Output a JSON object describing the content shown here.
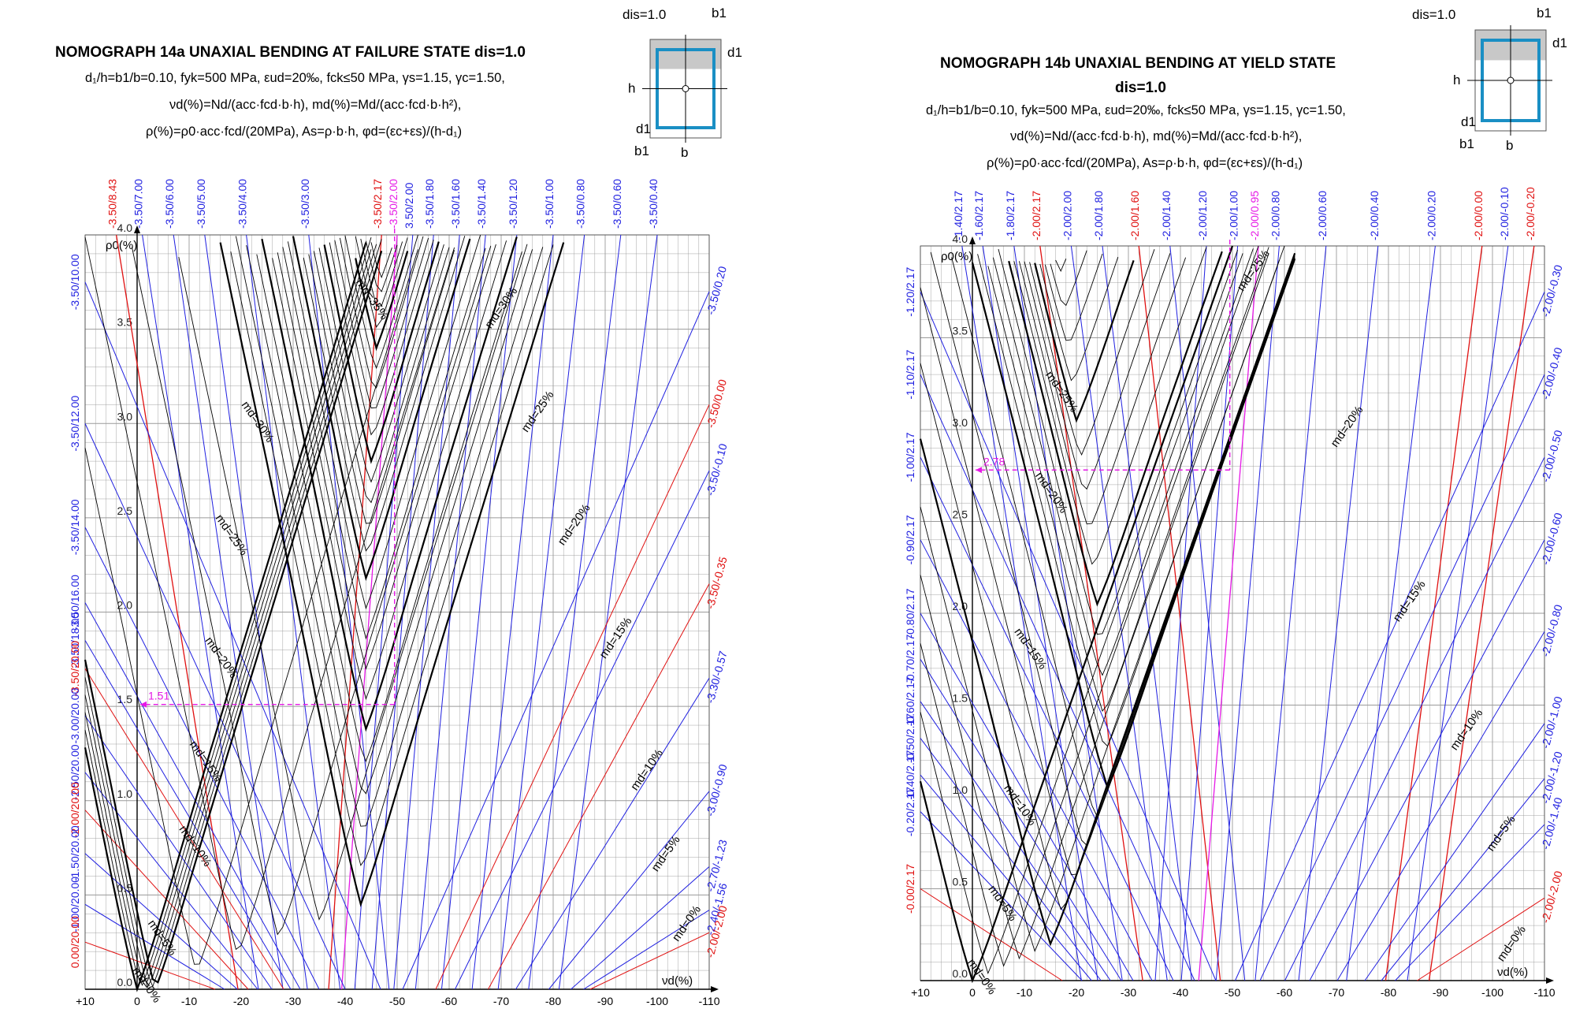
{
  "colors": {
    "blue": "#1f1fe0",
    "red": "#e01010",
    "magenta": "#e619e6",
    "section_blue": "#1a8fc4",
    "grid": "#9a9a9a",
    "curve": "#000000",
    "shade": "#c8c8c8"
  },
  "chart_data": [
    {
      "type": "line",
      "title": "NOMOGRAPH 14a UNAXIAL BENDING AT FAILURE STATE dis=1.0",
      "subtitle_lines": [
        "d₁/h=b1/b=0.10, fyk=500 MPa, εud=20‰, fck≤50 MPa, γs=1.15, γc=1.50,",
        "νd(%)=Nd/(acc·fcd·b·h), md(%)=Md/(acc·fcd·b·h²),",
        "ρ(%)=ρ0·acc·fcd/(20MPa), As=ρ·b·h, φd=(εc+εs)/(h-d₁)"
      ],
      "xlabel": "νd(%)",
      "ylabel": "ρ0(%)",
      "xlim": [
        10,
        -110
      ],
      "ylim": [
        0,
        4.0
      ],
      "x_ticks": [
        "+10",
        "0",
        "-10",
        "-20",
        "-30",
        "-40",
        "-50",
        "-60",
        "-70",
        "-80",
        "-90",
        "-100",
        "-110"
      ],
      "y_ticks": [
        "0.0",
        "0.5",
        "1.0",
        "1.5",
        "2.0",
        "2.5",
        "3.0",
        "3.5",
        "4.0"
      ],
      "section_labels": {
        "dis": "dis=1.0",
        "b1": "b1",
        "d1": "d1",
        "h": "h",
        "b": "b"
      },
      "curves": [
        {
          "label": "md=0%",
          "m": 0,
          "vertex": [
            0.0,
            0.0
          ],
          "slopes": [
            0.13,
            0.09
          ]
        },
        {
          "label": "md=5%",
          "m": 5,
          "vertex": [
            -3.5,
            0.0
          ],
          "slopes": [
            0.13,
            0.09
          ]
        },
        {
          "label": "md=10%",
          "m": 10,
          "vertex": [
            -43,
            0.45
          ],
          "slopes": [
            0.13,
            0.09
          ]
        },
        {
          "label": "md=15%",
          "m": 15,
          "vertex": [
            -44,
            1.38
          ],
          "slopes": [
            0.13,
            0.09
          ]
        },
        {
          "label": "md=20%",
          "m": 20,
          "vertex": [
            -44,
            2.18
          ],
          "slopes": [
            0.13,
            0.09
          ]
        },
        {
          "label": "md=25%",
          "m": 25,
          "vertex": [
            -45,
            2.8
          ],
          "slopes": [
            0.13,
            0.09
          ]
        },
        {
          "label": "md=30%",
          "m": 30,
          "vertex": [
            -46,
            3.4
          ],
          "slopes": [
            0.13,
            0.09
          ]
        },
        {
          "label": "md=35%",
          "m": 35,
          "vertex": [
            -47,
            3.85
          ],
          "slopes": [
            0.13,
            0.09
          ]
        }
      ],
      "curve_labels": [
        {
          "text": "md=0%",
          "at": [
            1,
            0.1
          ]
        },
        {
          "text": "md=5%",
          "at": [
            -2,
            0.35
          ]
        },
        {
          "text": "md=10%",
          "at": [
            -8,
            0.85
          ]
        },
        {
          "text": "md=15%",
          "at": [
            -10,
            1.3
          ]
        },
        {
          "text": "md=20%",
          "at": [
            -13,
            1.85
          ]
        },
        {
          "text": "md=25%",
          "at": [
            -15,
            2.5
          ]
        },
        {
          "text": "md=30%",
          "at": [
            -20,
            3.1
          ]
        },
        {
          "text": "md=35%",
          "at": [
            -42,
            3.75
          ]
        },
        {
          "text": "md=30%",
          "at": [
            -68,
            3.5
          ]
        },
        {
          "text": "md=25%",
          "at": [
            -75,
            2.95
          ]
        },
        {
          "text": "md=20%",
          "at": [
            -82,
            2.35
          ]
        },
        {
          "text": "md=15%",
          "at": [
            -90,
            1.75
          ]
        },
        {
          "text": "md=10%",
          "at": [
            -96,
            1.05
          ]
        },
        {
          "text": "md=5%",
          "at": [
            -100,
            0.62
          ]
        },
        {
          "text": "md=0%",
          "at": [
            -104,
            0.25
          ]
        }
      ],
      "top_strain_labels": [
        {
          "text": "-3.50/8.43",
          "x": 4,
          "color": "red"
        },
        {
          "text": "-3.50/7.00",
          "x": -1,
          "color": "blue"
        },
        {
          "text": "-3.50/6.00",
          "x": -7,
          "color": "blue"
        },
        {
          "text": "-3.50/5.00",
          "x": -13,
          "color": "blue"
        },
        {
          "text": "-3.50/4.00",
          "x": -21,
          "color": "blue"
        },
        {
          "text": "-3.50/3.00",
          "x": -33,
          "color": "blue"
        },
        {
          "text": "-3.50/2.17",
          "x": -47,
          "color": "red"
        },
        {
          "text": "-3.50/2.00",
          "x": -50,
          "color": "magenta"
        },
        {
          "text": "3.50/2.00",
          "x": -53,
          "color": "blue"
        },
        {
          "text": "-3.50/1.80",
          "x": -57,
          "color": "blue"
        },
        {
          "text": "-3.50/1.60",
          "x": -62,
          "color": "blue"
        },
        {
          "text": "-3.50/1.40",
          "x": -67,
          "color": "blue"
        },
        {
          "text": "-3.50/1.20",
          "x": -73,
          "color": "blue"
        },
        {
          "text": "-3.50/1.00",
          "x": -80,
          "color": "blue"
        },
        {
          "text": "-3.50/0.80",
          "x": -86,
          "color": "blue"
        },
        {
          "text": "-3.50/0.60",
          "x": -93,
          "color": "blue"
        },
        {
          "text": "-3.50/0.40",
          "x": -100,
          "color": "blue"
        }
      ],
      "left_strain_labels": [
        {
          "text": "-3.50/10.00",
          "y": 3.75,
          "color": "blue"
        },
        {
          "text": "-3.50/12.00",
          "y": 3.0,
          "color": "blue"
        },
        {
          "text": "-3.50/14.00",
          "y": 2.45,
          "color": "blue"
        },
        {
          "text": "-3.50/16.00",
          "y": 2.05,
          "color": "blue"
        },
        {
          "text": "-3.50/18.00",
          "y": 1.85,
          "color": "blue"
        },
        {
          "text": "-3.50/20.00",
          "y": 1.7,
          "color": "red"
        },
        {
          "text": "-3.00/20.00",
          "y": 1.45,
          "color": "blue"
        },
        {
          "text": "-2.50/20.00",
          "y": 1.15,
          "color": "blue"
        },
        {
          "text": "-2.00/20.00",
          "y": 0.95,
          "color": "red"
        },
        {
          "text": "-1.50/20.00",
          "y": 0.72,
          "color": "blue"
        },
        {
          "text": "-1.00/20.00",
          "y": 0.45,
          "color": "blue"
        },
        {
          "text": "0.00/20.00",
          "y": 0.25,
          "color": "red"
        }
      ],
      "right_strain_labels": [
        {
          "text": "-3.50/0.20",
          "y": 3.7,
          "color": "blue"
        },
        {
          "text": "-3.50/0.00",
          "y": 3.1,
          "color": "red"
        },
        {
          "text": "-3.50/-0.10",
          "y": 2.75,
          "color": "blue"
        },
        {
          "text": "-3.50/-0.35",
          "y": 2.15,
          "color": "red"
        },
        {
          "text": "-3.30/-0.57",
          "y": 1.65,
          "color": "blue"
        },
        {
          "text": "-3.00/-0.90",
          "y": 1.05,
          "color": "blue"
        },
        {
          "text": "-2.70/-1.23",
          "y": 0.65,
          "color": "blue"
        },
        {
          "text": "-2.40/-1.56",
          "y": 0.42,
          "color": "blue"
        },
        {
          "text": "-2.00/-2.00",
          "y": 0.3,
          "color": "red"
        }
      ],
      "example": {
        "rho": 1.51,
        "rho_label": "1.51",
        "nu": -49.5,
        "m": 35,
        "line_label": "-3.50/2.00"
      }
    },
    {
      "type": "line",
      "title": "NOMOGRAPH 14b UNAXIAL BENDING AT YIELD STATE",
      "title_line2": "dis=1.0",
      "subtitle_lines": [
        "d₁/h=b1/b=0.10, fyk=500 MPa, εud=20‰, fck≤50 MPa, γs=1.15, γc=1.50,",
        "νd(%)=Nd/(acc·fcd·b·h), md(%)=Md/(acc·fcd·b·h²),",
        "ρ(%)=ρ0·acc·fcd/(20MPa), As=ρ·b·h, φd=(εc+εs)/(h-d₁)"
      ],
      "xlabel": "νd(%)",
      "ylabel": "ρ0(%)",
      "xlim": [
        10,
        -110
      ],
      "ylim": [
        0,
        4.0
      ],
      "x_ticks": [
        "+10",
        "0",
        "-10",
        "-20",
        "-30",
        "-40",
        "-50",
        "-60",
        "-70",
        "-80",
        "-90",
        "-100",
        "-110"
      ],
      "y_ticks": [
        "0.0",
        "0.5",
        "1.0",
        "1.5",
        "2.0",
        "2.5",
        "3.0",
        "3.5",
        "4.0"
      ],
      "section_labels": {
        "dis": "dis=1.0",
        "b1": "b1",
        "d1": "d1",
        "h": "h",
        "b": "b"
      },
      "curves": [
        {
          "label": "md=0%",
          "m": 0,
          "vertex": [
            0.0,
            0.0
          ],
          "slopes": [
            0.11,
            0.08
          ]
        },
        {
          "label": "md=5%",
          "m": 5,
          "vertex": [
            -15,
            0.2
          ],
          "slopes": [
            0.11,
            0.08
          ]
        },
        {
          "label": "md=10%",
          "m": 10,
          "vertex": [
            -26,
            1.05
          ],
          "slopes": [
            0.11,
            0.08
          ]
        },
        {
          "label": "md=15%",
          "m": 15,
          "vertex": [
            -24,
            2.05
          ],
          "slopes": [
            0.11,
            0.08
          ]
        },
        {
          "label": "md=20%",
          "m": 20,
          "vertex": [
            -20,
            3.05
          ],
          "slopes": [
            0.11,
            0.08
          ]
        },
        {
          "label": "md=25%",
          "m": 25,
          "vertex": [
            -16,
            4.05
          ],
          "slopes": [
            0.11,
            0.08
          ]
        }
      ],
      "curve_labels": [
        {
          "text": "md=0%",
          "at": [
            1,
            0.1
          ]
        },
        {
          "text": "md=5%",
          "at": [
            -3,
            0.5
          ]
        },
        {
          "text": "md=10%",
          "at": [
            -6,
            1.05
          ]
        },
        {
          "text": "md=15%",
          "at": [
            -8,
            1.9
          ]
        },
        {
          "text": "md=20%",
          "at": [
            -12,
            2.75
          ]
        },
        {
          "text": "md=25%",
          "at": [
            -14,
            3.3
          ]
        },
        {
          "text": "md=25%",
          "at": [
            -52,
            3.75
          ]
        },
        {
          "text": "md=20%",
          "at": [
            -70,
            2.9
          ]
        },
        {
          "text": "md=15%",
          "at": [
            -82,
            1.95
          ]
        },
        {
          "text": "md=10%",
          "at": [
            -93,
            1.25
          ]
        },
        {
          "text": "md=5%",
          "at": [
            -100,
            0.7
          ]
        },
        {
          "text": "md=0%",
          "at": [
            -102,
            0.1
          ]
        }
      ],
      "top_strain_labels": [
        {
          "text": "-1.40/2.17",
          "x": 2,
          "color": "blue"
        },
        {
          "text": "-1.60/2.17",
          "x": -2,
          "color": "blue"
        },
        {
          "text": "-1.80/2.17",
          "x": -8,
          "color": "blue"
        },
        {
          "text": "-2.00/2.17",
          "x": -13,
          "color": "red"
        },
        {
          "text": "-2.00/2.00",
          "x": -19,
          "color": "blue"
        },
        {
          "text": "-2.00/1.80",
          "x": -25,
          "color": "blue"
        },
        {
          "text": "-2.00/1.60",
          "x": -32,
          "color": "red"
        },
        {
          "text": "-2.00/1.40",
          "x": -38,
          "color": "blue"
        },
        {
          "text": "-2.00/1.20",
          "x": -45,
          "color": "blue"
        },
        {
          "text": "-2.00/1.00",
          "x": -51,
          "color": "blue"
        },
        {
          "text": "-2.00/0.95",
          "x": -55,
          "color": "magenta"
        },
        {
          "text": "-2.00/0.80",
          "x": -59,
          "color": "blue"
        },
        {
          "text": "-2.00/0.60",
          "x": -68,
          "color": "blue"
        },
        {
          "text": "-2.00/0.40",
          "x": -78,
          "color": "blue"
        },
        {
          "text": "-2.00/0.20",
          "x": -89,
          "color": "blue"
        },
        {
          "text": "-2.00/0.00",
          "x": -98,
          "color": "red"
        },
        {
          "text": "-2.00/-0.10",
          "x": -103,
          "color": "blue"
        },
        {
          "text": "-2.00/-0.20",
          "x": -108,
          "color": "red"
        }
      ],
      "left_strain_labels": [
        {
          "text": "-1.20/2.17",
          "y": 3.75,
          "color": "blue"
        },
        {
          "text": "-1.10/2.17",
          "y": 3.3,
          "color": "blue"
        },
        {
          "text": "-1.00/2.17",
          "y": 2.85,
          "color": "blue"
        },
        {
          "text": "-0.90/2.17",
          "y": 2.4,
          "color": "blue"
        },
        {
          "text": "-0.80/2.17",
          "y": 2.0,
          "color": "blue"
        },
        {
          "text": "-0.70/2.17",
          "y": 1.75,
          "color": "blue"
        },
        {
          "text": "-0.60/2.17",
          "y": 1.52,
          "color": "blue"
        },
        {
          "text": "-0.50/2.17",
          "y": 1.32,
          "color": "blue"
        },
        {
          "text": "-0.40/2.17",
          "y": 1.12,
          "color": "blue"
        },
        {
          "text": "-0.20/2.17",
          "y": 0.92,
          "color": "blue"
        },
        {
          "text": "-0.00/2.17",
          "y": 0.5,
          "color": "red"
        }
      ],
      "right_strain_labels": [
        {
          "text": "-2.00/-0.30",
          "y": 3.75,
          "color": "blue"
        },
        {
          "text": "-2.00/-0.40",
          "y": 3.3,
          "color": "blue"
        },
        {
          "text": "-2.00/-0.50",
          "y": 2.85,
          "color": "blue"
        },
        {
          "text": "-2.00/-0.60",
          "y": 2.4,
          "color": "blue"
        },
        {
          "text": "-2.00/-0.80",
          "y": 1.9,
          "color": "blue"
        },
        {
          "text": "-2.00/-1.00",
          "y": 1.4,
          "color": "blue"
        },
        {
          "text": "-2.00/-1.20",
          "y": 1.1,
          "color": "blue"
        },
        {
          "text": "-2.00/-1.40",
          "y": 0.85,
          "color": "blue"
        },
        {
          "text": "-2.00/-2.00",
          "y": 0.45,
          "color": "red"
        }
      ],
      "example": {
        "rho": 2.78,
        "rho_label": "2.78",
        "nu": -49.5,
        "m": 25,
        "line_label": "-2.00/0.95"
      }
    }
  ]
}
